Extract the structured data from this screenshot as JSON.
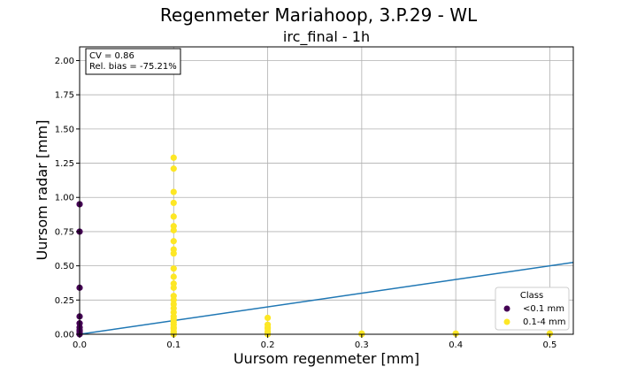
{
  "chart_data": {
    "type": "scatter",
    "title": "Regenmeter Mariahoop, 3.P.29 - WL",
    "subtitle": "irc_final - 1h",
    "xlabel": "Uursom regenmeter [mm]",
    "ylabel": "Uursom radar [mm]",
    "xlim": [
      0,
      0.525
    ],
    "ylim": [
      0,
      2.1
    ],
    "xticks": [
      0.0,
      0.1,
      0.2,
      0.3,
      0.4,
      0.5
    ],
    "xtick_labels": [
      "0.0",
      "0.1",
      "0.2",
      "0.3",
      "0.4",
      "0.5"
    ],
    "yticks": [
      0.0,
      0.25,
      0.5,
      0.75,
      1.0,
      1.25,
      1.5,
      1.75,
      2.0
    ],
    "ytick_labels": [
      "0.00",
      "0.25",
      "0.50",
      "0.75",
      "1.00",
      "1.25",
      "1.50",
      "1.75",
      "2.00"
    ],
    "grid": true,
    "legend_position": "lower-right",
    "legend_title": "Class",
    "stats_text": [
      "CV = 0.86",
      "Rel. bias = -75.21%"
    ],
    "reference_line": {
      "slope": 1,
      "intercept": 0,
      "color": "#1f77b4"
    },
    "series": [
      {
        "name": "<0.1 mm",
        "color": "#440154",
        "points": [
          [
            0,
            0.95
          ],
          [
            0,
            0.75
          ],
          [
            0,
            0.34
          ],
          [
            0,
            0.13
          ],
          [
            0,
            0.08
          ],
          [
            0,
            0.05
          ],
          [
            0,
            0.03
          ],
          [
            0,
            0.02
          ],
          [
            0,
            0.01
          ],
          [
            0,
            0.0
          ]
        ]
      },
      {
        "name": "0.1-4 mm",
        "color": "#fde725",
        "points": [
          [
            0.1,
            1.29
          ],
          [
            0.1,
            1.21
          ],
          [
            0.1,
            1.04
          ],
          [
            0.1,
            0.96
          ],
          [
            0.1,
            0.86
          ],
          [
            0.1,
            0.79
          ],
          [
            0.1,
            0.76
          ],
          [
            0.1,
            0.68
          ],
          [
            0.1,
            0.62
          ],
          [
            0.1,
            0.59
          ],
          [
            0.1,
            0.48
          ],
          [
            0.1,
            0.42
          ],
          [
            0.1,
            0.37
          ],
          [
            0.1,
            0.34
          ],
          [
            0.1,
            0.28
          ],
          [
            0.1,
            0.25
          ],
          [
            0.1,
            0.22
          ],
          [
            0.1,
            0.19
          ],
          [
            0.1,
            0.16
          ],
          [
            0.1,
            0.13
          ],
          [
            0.1,
            0.11
          ],
          [
            0.1,
            0.09
          ],
          [
            0.1,
            0.07
          ],
          [
            0.1,
            0.05
          ],
          [
            0.1,
            0.04
          ],
          [
            0.1,
            0.02
          ],
          [
            0.1,
            0.01
          ],
          [
            0.1,
            0.0
          ],
          [
            0.2,
            0.12
          ],
          [
            0.2,
            0.07
          ],
          [
            0.2,
            0.05
          ],
          [
            0.2,
            0.04
          ],
          [
            0.2,
            0.02
          ],
          [
            0.2,
            0.01
          ],
          [
            0.2,
            0.0
          ],
          [
            0.3,
            0.005
          ],
          [
            0.3,
            0.0
          ],
          [
            0.4,
            0.005
          ],
          [
            0.5,
            0.005
          ]
        ]
      }
    ]
  }
}
